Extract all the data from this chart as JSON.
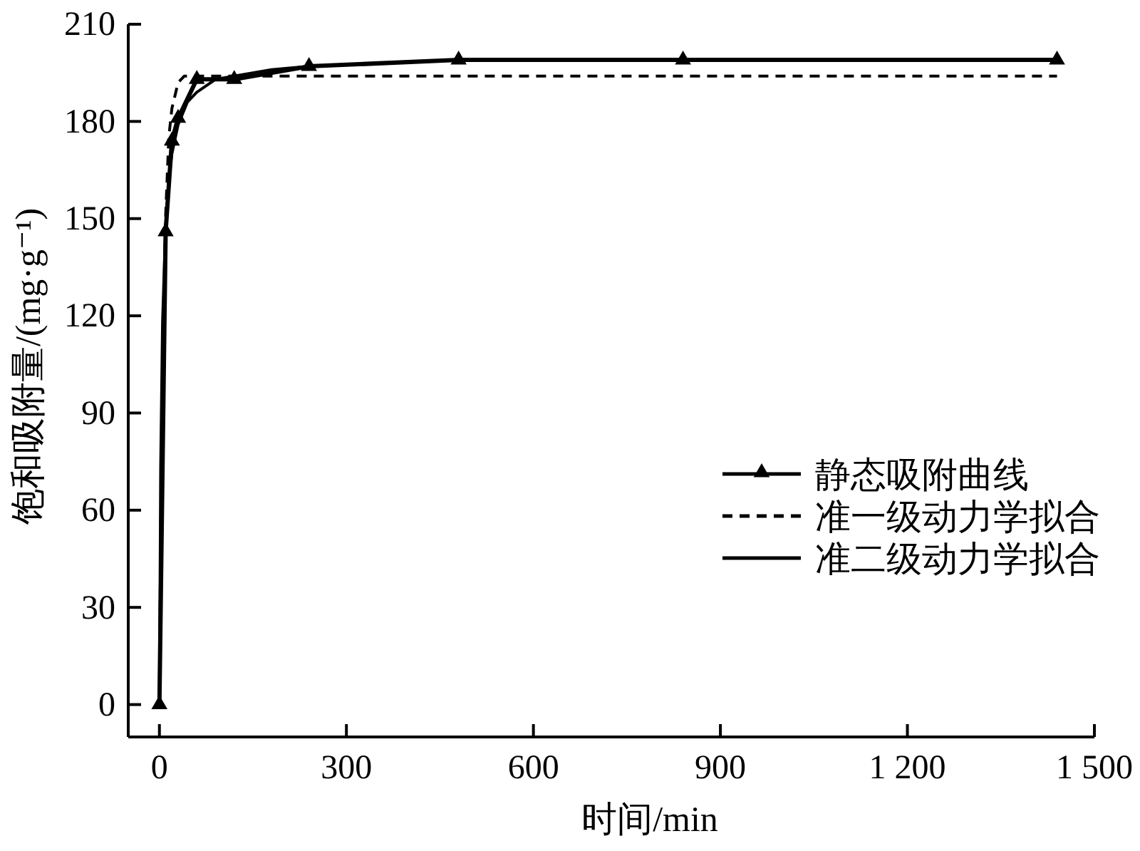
{
  "chart_data": {
    "type": "line",
    "xlabel": "时间/min",
    "ylabel": "饱和吸附量/(mg·g⁻¹)",
    "xlim": [
      -50,
      1500
    ],
    "ylim": [
      -10,
      210
    ],
    "xticks": [
      0,
      300,
      600,
      900,
      {
        "value": 1200,
        "label": "1 200"
      },
      {
        "value": 1500,
        "label": "1 500"
      }
    ],
    "yticks": [
      0,
      30,
      60,
      90,
      120,
      150,
      180,
      210
    ],
    "legend": "right",
    "series": [
      {
        "name": "静态吸附曲线",
        "color": "#000000",
        "marker": "triangle",
        "line_style": "solid",
        "x": [
          0,
          10,
          20,
          30,
          60,
          120,
          240,
          480,
          840,
          1440
        ],
        "values": [
          0,
          146,
          174,
          181,
          193,
          193,
          197,
          199,
          199,
          199
        ]
      },
      {
        "name": "准一级动力学拟合",
        "color": "#000000",
        "marker": "none",
        "line_style": "dashed",
        "x": [
          0,
          2,
          5,
          10,
          15,
          20,
          30,
          40,
          60,
          100,
          1440
        ],
        "values": [
          0,
          51,
          102,
          151,
          175,
          184,
          192,
          194,
          194,
          194,
          194
        ]
      },
      {
        "name": "准二级动力学拟合",
        "color": "#000000",
        "marker": "none",
        "line_style": "solid",
        "x": [
          0,
          2,
          5,
          10,
          15,
          20,
          30,
          45,
          60,
          90,
          120,
          180,
          240,
          360,
          480,
          720,
          960,
          1200,
          1440
        ],
        "values": [
          0,
          73,
          118,
          148,
          162,
          170,
          179,
          186,
          189,
          193,
          194,
          196,
          197,
          198,
          199,
          199,
          199,
          199,
          199
        ]
      }
    ]
  }
}
